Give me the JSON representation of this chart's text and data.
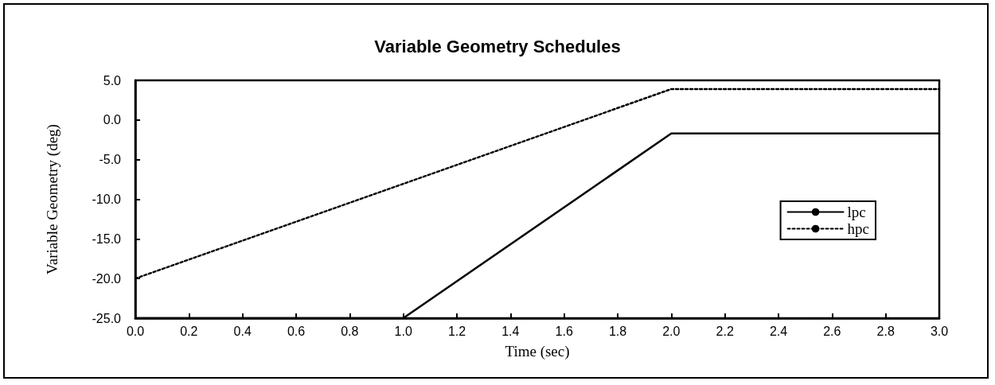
{
  "chart_data": {
    "type": "line",
    "title": "Variable Geometry Schedules",
    "xlabel": "Time (sec)",
    "ylabel": "Variable Geometry (deg)",
    "series": [
      {
        "name": "lpc",
        "color": "#000000",
        "line_style": "solid",
        "x": [
          0,
          1,
          2,
          3
        ],
        "values": [
          -25,
          -25,
          -1.7,
          -1.7
        ]
      },
      {
        "name": "hpc",
        "color": "#000000",
        "line_style": "dotted",
        "x": [
          0,
          2,
          3
        ],
        "values": [
          -20,
          3.9,
          3.9
        ]
      }
    ],
    "xlim": [
      0,
      3
    ],
    "xticks": [
      {
        "value": 0,
        "label": "0.0"
      },
      {
        "value": 0.2,
        "label": "0.2"
      },
      {
        "value": 0.4,
        "label": "0.4"
      },
      {
        "value": 0.6,
        "label": "0.6"
      },
      {
        "value": 0.8,
        "label": "0.8"
      },
      {
        "value": 1,
        "label": "1.0"
      },
      {
        "value": 1.2,
        "label": "1.2"
      },
      {
        "value": 1.4,
        "label": "1.4"
      },
      {
        "value": 1.6,
        "label": "1.6"
      },
      {
        "value": 1.8,
        "label": "1.8"
      },
      {
        "value": 2,
        "label": "2.0"
      },
      {
        "value": 2.2,
        "label": "2.2"
      },
      {
        "value": 2.4,
        "label": "2.4"
      },
      {
        "value": 2.6,
        "label": "2.6"
      },
      {
        "value": 2.8,
        "label": "2.8"
      },
      {
        "value": 3,
        "label": "3.0"
      }
    ],
    "ylim": [
      -25,
      5
    ],
    "yticks": [
      {
        "value": -25,
        "label": "-25.0"
      },
      {
        "value": -20,
        "label": "-20.0"
      },
      {
        "value": -15,
        "label": "-15.0"
      },
      {
        "value": -10,
        "label": "-10.0"
      },
      {
        "value": -5,
        "label": "-5.0"
      },
      {
        "value": 0,
        "label": "0.0"
      },
      {
        "value": 5,
        "label": "5.0"
      }
    ],
    "grid": false,
    "legend": "right",
    "marker": "none"
  }
}
